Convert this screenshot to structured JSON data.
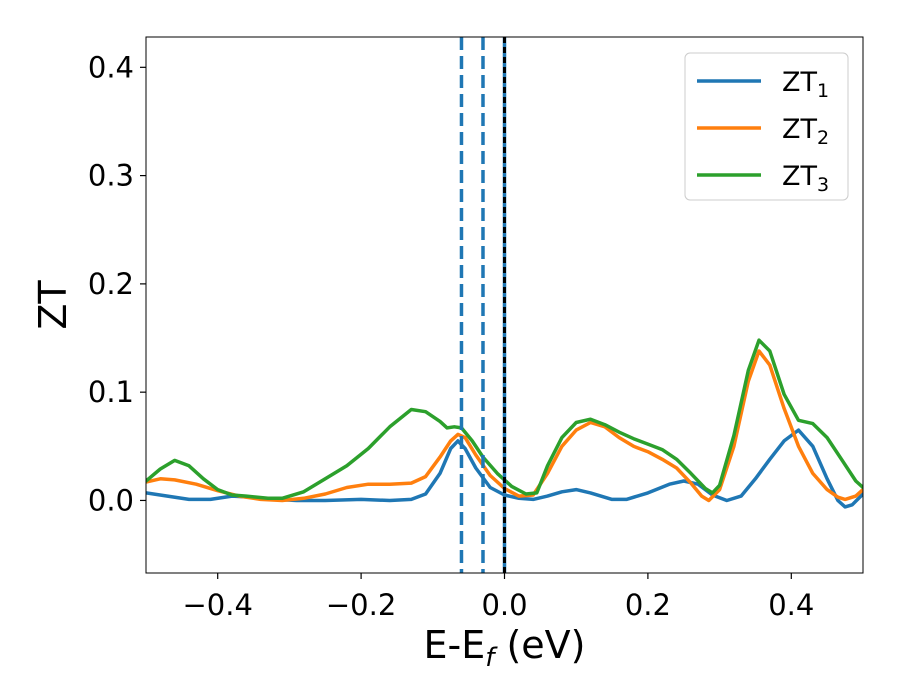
{
  "chart_data": {
    "type": "line",
    "xlabel": "E-E",
    "xlabel_sub": "f",
    "xlabel_unit": " (eV)",
    "ylabel": "ZT",
    "xlim": [
      -0.5,
      0.5
    ],
    "ylim": [
      -0.067,
      0.428
    ],
    "x_ticks": [
      -0.4,
      -0.2,
      0.0,
      0.2,
      0.4
    ],
    "x_tick_labels": [
      "−0.4",
      "−0.2",
      "0.0",
      "0.2",
      "0.4"
    ],
    "y_ticks": [
      0.0,
      0.1,
      0.2,
      0.3,
      0.4
    ],
    "y_tick_labels": [
      "0.0",
      "0.1",
      "0.2",
      "0.3",
      "0.4"
    ],
    "grid": false,
    "legend_position": "top-right",
    "vlines": [
      {
        "x": -0.06,
        "style": "dashed",
        "color": "#1f77b4"
      },
      {
        "x": -0.03,
        "style": "dashed",
        "color": "#1f77b4"
      },
      {
        "x": 0.0,
        "style": "solid",
        "color": "#1f77b4"
      },
      {
        "x": 0.0,
        "style": "dashed",
        "color": "#000000"
      }
    ],
    "series": [
      {
        "name": "ZT",
        "name_sub": "1",
        "color": "#1f77b4",
        "points": [
          [
            -0.5,
            0.007
          ],
          [
            -0.47,
            0.004
          ],
          [
            -0.44,
            0.001
          ],
          [
            -0.41,
            0.001
          ],
          [
            -0.38,
            0.004
          ],
          [
            -0.35,
            0.003
          ],
          [
            -0.32,
            0.001
          ],
          [
            -0.29,
            0.0
          ],
          [
            -0.25,
            0.0
          ],
          [
            -0.2,
            0.001
          ],
          [
            -0.16,
            0.0
          ],
          [
            -0.13,
            0.001
          ],
          [
            -0.11,
            0.006
          ],
          [
            -0.09,
            0.025
          ],
          [
            -0.075,
            0.048
          ],
          [
            -0.065,
            0.055
          ],
          [
            -0.055,
            0.048
          ],
          [
            -0.04,
            0.03
          ],
          [
            -0.02,
            0.012
          ],
          [
            0.0,
            0.005
          ],
          [
            0.02,
            0.002
          ],
          [
            0.04,
            0.001
          ],
          [
            0.06,
            0.004
          ],
          [
            0.08,
            0.008
          ],
          [
            0.1,
            0.01
          ],
          [
            0.12,
            0.007
          ],
          [
            0.15,
            0.001
          ],
          [
            0.17,
            0.001
          ],
          [
            0.2,
            0.007
          ],
          [
            0.23,
            0.015
          ],
          [
            0.25,
            0.018
          ],
          [
            0.27,
            0.015
          ],
          [
            0.29,
            0.005
          ],
          [
            0.31,
            0.0
          ],
          [
            0.33,
            0.004
          ],
          [
            0.35,
            0.02
          ],
          [
            0.37,
            0.038
          ],
          [
            0.39,
            0.055
          ],
          [
            0.41,
            0.065
          ],
          [
            0.43,
            0.05
          ],
          [
            0.45,
            0.02
          ],
          [
            0.465,
            0.0
          ],
          [
            0.475,
            -0.006
          ],
          [
            0.485,
            -0.004
          ],
          [
            0.5,
            0.006
          ]
        ]
      },
      {
        "name": "ZT",
        "name_sub": "2",
        "color": "#ff7f0e",
        "points": [
          [
            -0.5,
            0.017
          ],
          [
            -0.48,
            0.02
          ],
          [
            -0.46,
            0.019
          ],
          [
            -0.43,
            0.015
          ],
          [
            -0.4,
            0.009
          ],
          [
            -0.37,
            0.004
          ],
          [
            -0.34,
            0.001
          ],
          [
            -0.31,
            0.0
          ],
          [
            -0.28,
            0.002
          ],
          [
            -0.25,
            0.006
          ],
          [
            -0.22,
            0.012
          ],
          [
            -0.19,
            0.015
          ],
          [
            -0.16,
            0.015
          ],
          [
            -0.13,
            0.016
          ],
          [
            -0.11,
            0.022
          ],
          [
            -0.09,
            0.04
          ],
          [
            -0.075,
            0.055
          ],
          [
            -0.065,
            0.061
          ],
          [
            -0.055,
            0.058
          ],
          [
            -0.04,
            0.042
          ],
          [
            -0.02,
            0.023
          ],
          [
            0.0,
            0.011
          ],
          [
            0.02,
            0.004
          ],
          [
            0.04,
            0.005
          ],
          [
            0.06,
            0.025
          ],
          [
            0.08,
            0.05
          ],
          [
            0.1,
            0.065
          ],
          [
            0.12,
            0.072
          ],
          [
            0.14,
            0.068
          ],
          [
            0.16,
            0.058
          ],
          [
            0.18,
            0.05
          ],
          [
            0.2,
            0.045
          ],
          [
            0.22,
            0.038
          ],
          [
            0.24,
            0.03
          ],
          [
            0.26,
            0.016
          ],
          [
            0.275,
            0.004
          ],
          [
            0.285,
            0.0
          ],
          [
            0.3,
            0.01
          ],
          [
            0.32,
            0.05
          ],
          [
            0.34,
            0.11
          ],
          [
            0.355,
            0.138
          ],
          [
            0.37,
            0.125
          ],
          [
            0.39,
            0.085
          ],
          [
            0.41,
            0.05
          ],
          [
            0.43,
            0.025
          ],
          [
            0.45,
            0.01
          ],
          [
            0.465,
            0.003
          ],
          [
            0.475,
            0.001
          ],
          [
            0.49,
            0.004
          ],
          [
            0.5,
            0.01
          ]
        ]
      },
      {
        "name": "ZT",
        "name_sub": "3",
        "color": "#2ca02c",
        "points": [
          [
            -0.5,
            0.018
          ],
          [
            -0.48,
            0.029
          ],
          [
            -0.46,
            0.037
          ],
          [
            -0.44,
            0.032
          ],
          [
            -0.42,
            0.02
          ],
          [
            -0.4,
            0.01
          ],
          [
            -0.38,
            0.005
          ],
          [
            -0.36,
            0.004
          ],
          [
            -0.33,
            0.002
          ],
          [
            -0.31,
            0.002
          ],
          [
            -0.28,
            0.008
          ],
          [
            -0.25,
            0.02
          ],
          [
            -0.22,
            0.032
          ],
          [
            -0.19,
            0.048
          ],
          [
            -0.16,
            0.068
          ],
          [
            -0.13,
            0.084
          ],
          [
            -0.11,
            0.082
          ],
          [
            -0.09,
            0.073
          ],
          [
            -0.08,
            0.067
          ],
          [
            -0.07,
            0.068
          ],
          [
            -0.06,
            0.067
          ],
          [
            -0.045,
            0.055
          ],
          [
            -0.03,
            0.04
          ],
          [
            -0.01,
            0.025
          ],
          [
            0.01,
            0.013
          ],
          [
            0.03,
            0.006
          ],
          [
            0.045,
            0.007
          ],
          [
            0.06,
            0.032
          ],
          [
            0.08,
            0.058
          ],
          [
            0.1,
            0.072
          ],
          [
            0.12,
            0.075
          ],
          [
            0.14,
            0.07
          ],
          [
            0.16,
            0.063
          ],
          [
            0.18,
            0.057
          ],
          [
            0.2,
            0.052
          ],
          [
            0.22,
            0.047
          ],
          [
            0.24,
            0.038
          ],
          [
            0.26,
            0.025
          ],
          [
            0.28,
            0.011
          ],
          [
            0.29,
            0.007
          ],
          [
            0.3,
            0.014
          ],
          [
            0.32,
            0.06
          ],
          [
            0.34,
            0.12
          ],
          [
            0.355,
            0.148
          ],
          [
            0.37,
            0.138
          ],
          [
            0.39,
            0.098
          ],
          [
            0.41,
            0.074
          ],
          [
            0.43,
            0.071
          ],
          [
            0.45,
            0.058
          ],
          [
            0.47,
            0.038
          ],
          [
            0.49,
            0.018
          ],
          [
            0.5,
            0.012
          ]
        ]
      }
    ]
  }
}
